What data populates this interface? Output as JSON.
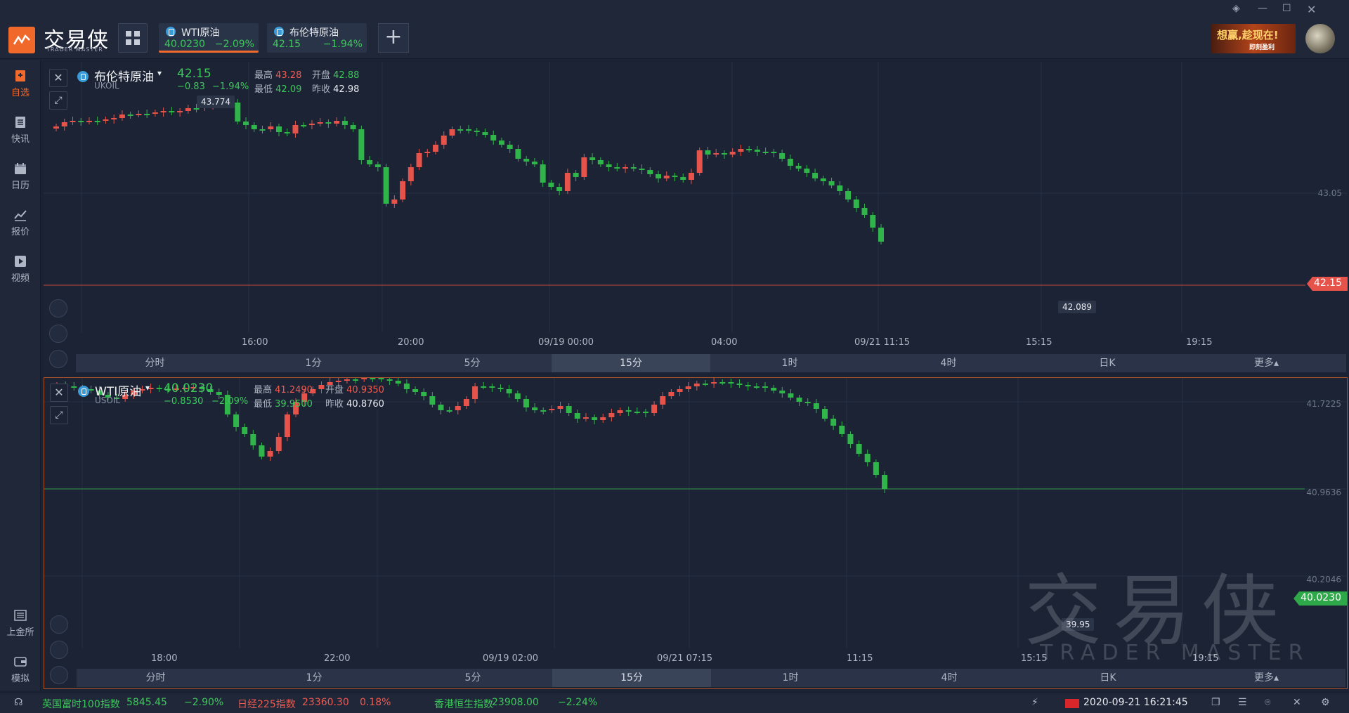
{
  "app": {
    "brand": "交易侠",
    "brand_sub": "TRADER MASTER",
    "ad_text": "想赢,趁现在!",
    "ad_sub": "即刻盈利"
  },
  "tabs": [
    {
      "name": "WTI原油",
      "price": "40.0230",
      "change": "−2.09%",
      "active": true
    },
    {
      "name": "布伦特原油",
      "price": "42.15",
      "change": "−1.94%",
      "active": false
    }
  ],
  "sidebar": [
    {
      "label": "自选",
      "icon": "bookmark-icon",
      "active": true
    },
    {
      "label": "快讯",
      "icon": "news-icon",
      "active": false
    },
    {
      "label": "日历",
      "icon": "calendar-icon",
      "active": false
    },
    {
      "label": "报价",
      "icon": "chart-line-icon",
      "active": false
    },
    {
      "label": "视频",
      "icon": "video-icon",
      "active": false
    },
    {
      "label": "上金所",
      "icon": "exchange-icon",
      "active": false
    },
    {
      "label": "模拟",
      "icon": "wallet-icon",
      "active": false
    }
  ],
  "panels": [
    {
      "name": "布伦特原油",
      "code": "UKOIL",
      "price": "42.15",
      "change": "−0.83",
      "change_pct": "−1.94%",
      "high_label": "最高",
      "high": "43.28",
      "open_label": "开盘",
      "open": "42.88",
      "low_label": "最低",
      "low": "42.09",
      "prev_label": "昨收",
      "prev": "42.98",
      "y_labels": [
        "43.05"
      ],
      "last_tag": "42.15",
      "tag_color": "#e5534b",
      "tip_high": "43.774",
      "tip_low": "42.089",
      "x_labels": [
        "16:00",
        "20:00",
        "09/19 00:00",
        "04:00",
        "09/21 11:15",
        "15:15",
        "19:15"
      ],
      "periods": [
        "分时",
        "1分",
        "5分",
        "15分",
        "1时",
        "4时",
        "日K",
        "更多▴"
      ],
      "active_period": 3
    },
    {
      "name": "WTI原油",
      "code": "USOIL",
      "price": "40.0230",
      "change": "−0.8530",
      "change_pct": "−2.09%",
      "high_label": "最高",
      "high": "41.2490",
      "open_label": "开盘",
      "open": "40.9350",
      "low_label": "最低",
      "low": "39.9500",
      "prev_label": "昨收",
      "prev": "40.8760",
      "y_labels": [
        "41.7225",
        "40.9636",
        "40.2046"
      ],
      "last_tag": "40.0230",
      "tag_color": "#2fa84a",
      "tip_low": "39.95",
      "x_labels": [
        "18:00",
        "22:00",
        "09/19 02:00",
        "09/21 07:15",
        "11:15",
        "15:15",
        "19:15"
      ],
      "periods": [
        "分时",
        "1分",
        "5分",
        "15分",
        "1时",
        "4时",
        "日K",
        "更多▴"
      ],
      "active_period": 3
    }
  ],
  "chart_data": [
    {
      "type": "candlestick",
      "title": "布伦特原油 UKOIL",
      "y_label_shown": "43.05",
      "last": 42.15,
      "high_marker": 43.774,
      "low_marker": 42.089,
      "trend": "up-then-down"
    },
    {
      "type": "candlestick",
      "title": "WTI原油 USOIL",
      "y_labels_shown": [
        41.7225,
        40.9636,
        40.2046
      ],
      "last": 40.023,
      "low_marker": 39.95,
      "trend": "up-then-down"
    }
  ],
  "statusbar": {
    "items": [
      {
        "name": "英国富时100指数",
        "value": "5845.45",
        "change": "−2.90%"
      },
      {
        "name": "日经225指数",
        "value": "23360.30",
        "change": "0.18%"
      },
      {
        "name": "香港恒生指数",
        "value": "23908.00",
        "change": "−2.24%"
      }
    ],
    "datetime": "2020-09-21 16:21:45"
  },
  "watermark": {
    "text": "交易侠",
    "sub": "TRADER MASTER"
  }
}
